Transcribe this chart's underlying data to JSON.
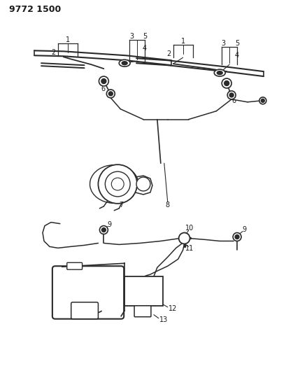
{
  "title": "9772 1500",
  "background_color": "#ffffff",
  "line_color": "#2a2a2a",
  "text_color": "#1a1a1a",
  "fig_width": 4.1,
  "fig_height": 5.33,
  "dpi": 100
}
